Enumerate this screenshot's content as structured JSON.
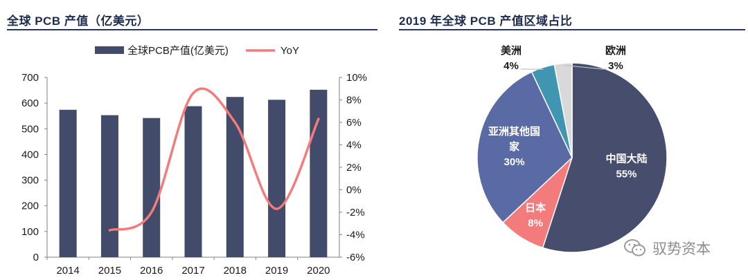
{
  "left_title": "全球 PCB 产值（亿美元）",
  "right_title": "2019 年全球 PCB 产值区域占比",
  "watermark": {
    "text": "驭势资本",
    "icon": "wechat-icon"
  },
  "colors": {
    "bar": "#434b6a",
    "line": "#f47b7b",
    "china": "#464d6d",
    "asia": "#5a6aa4",
    "japan": "#f47b7b",
    "america": "#4096b1",
    "europe": "#d9d9d9",
    "title": "#1d2b4f"
  },
  "chart_data": [
    {
      "type": "bar",
      "categories": [
        "2014",
        "2015",
        "2016",
        "2017",
        "2018",
        "2019",
        "2020"
      ],
      "series": [
        {
          "name": "全球PCB产值(亿美元)",
          "type": "bar",
          "axis": "left",
          "values": [
            574,
            553,
            542,
            588,
            624,
            613,
            652
          ]
        },
        {
          "name": "YoY",
          "type": "line",
          "axis": "right",
          "values": [
            null,
            -3.6,
            -2.0,
            8.6,
            6.0,
            -1.7,
            6.3
          ]
        }
      ],
      "ylim": [
        0,
        700
      ],
      "yticks": [
        "0",
        "100",
        "200",
        "300",
        "400",
        "500",
        "600",
        "700"
      ],
      "y2lim": [
        -6,
        10
      ],
      "y2ticks": [
        "-6%",
        "-4%",
        "-2%",
        "0%",
        "2%",
        "4%",
        "6%",
        "8%",
        "10%"
      ],
      "legend": "top",
      "grid": false
    },
    {
      "type": "pie",
      "slices": [
        {
          "label": "中国大陆",
          "value": 55,
          "pct": "55%",
          "color": "#464d6d"
        },
        {
          "label": "日本",
          "value": 8,
          "pct": "8%",
          "color": "#f47b7b"
        },
        {
          "label": "亚洲其他国家",
          "label_lines": [
            "亚洲其他国",
            "家"
          ],
          "value": 30,
          "pct": "30%",
          "color": "#5a6aa4"
        },
        {
          "label": "美洲",
          "value": 4,
          "pct": "4%",
          "color": "#4096b1"
        },
        {
          "label": "欧洲",
          "value": 3,
          "pct": "3%",
          "color": "#d9d9d9"
        }
      ]
    }
  ]
}
